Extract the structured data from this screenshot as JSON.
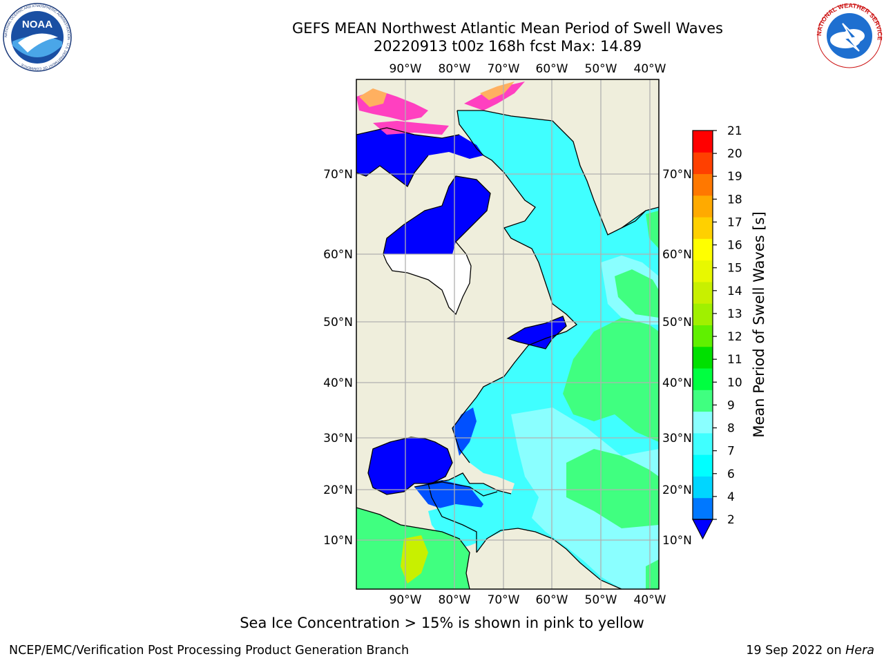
{
  "header": {
    "title_line1": "GEFS MEAN Northwest Atlantic Mean Period of Swell Waves",
    "title_line2": "20220913 t00z 168h fcst   Max: 14.89"
  },
  "logos": {
    "noaa": {
      "text": "NOAA",
      "ring_text": "NATIONAL OCEANIC AND ATMOSPHERIC ADMINISTRATION · U.S. DEPARTMENT OF COMMERCE ·"
    },
    "nws": {
      "ring_text": "NATIONAL WEATHER SERVICE"
    }
  },
  "map": {
    "lon_labels": [
      "90°W",
      "80°W",
      "70°W",
      "60°W",
      "50°W",
      "40°W"
    ],
    "lat_labels": [
      "70°N",
      "60°N",
      "50°N",
      "40°N",
      "30°N",
      "20°N",
      "10°N"
    ],
    "colors": {
      "land": "#efeedc",
      "gridline": "#b0b0b0",
      "coast": "#000000",
      "ocean_short": "#00c0ff",
      "ocean_cyan": "#40ffff",
      "ocean_light": "#8affff",
      "ocean_green": "#40ff80",
      "ocean_blue": "#0050ff",
      "ocean_deep": "#0000ff",
      "ice_pink": "#ff40c0",
      "ice_orange": "#ffb060"
    }
  },
  "colorbar": {
    "label": "Mean Period of Swell Waves [s]",
    "ticks": [
      "2",
      "4",
      "6",
      "7",
      "8",
      "9",
      "10",
      "11",
      "12",
      "13",
      "14",
      "15",
      "16",
      "17",
      "18",
      "19",
      "20",
      "21"
    ],
    "colors": [
      "#0078ff",
      "#00d6ff",
      "#00ffff",
      "#40ffff",
      "#8affff",
      "#40ff80",
      "#00ff40",
      "#00e000",
      "#60f000",
      "#a0f000",
      "#c8f000",
      "#e8f800",
      "#ffff00",
      "#ffd000",
      "#ffaa00",
      "#ff7800",
      "#ff4000",
      "#ff0000"
    ],
    "extend_color": "#0000ff"
  },
  "footer": {
    "note": "Sea Ice Concentration > 15% is shown in pink to yellow",
    "credit_left": "NCEP/EMC/Verification Post Processing Product Generation Branch",
    "credit_date": "19 Sep 2022 on ",
    "credit_host": "Hera"
  }
}
